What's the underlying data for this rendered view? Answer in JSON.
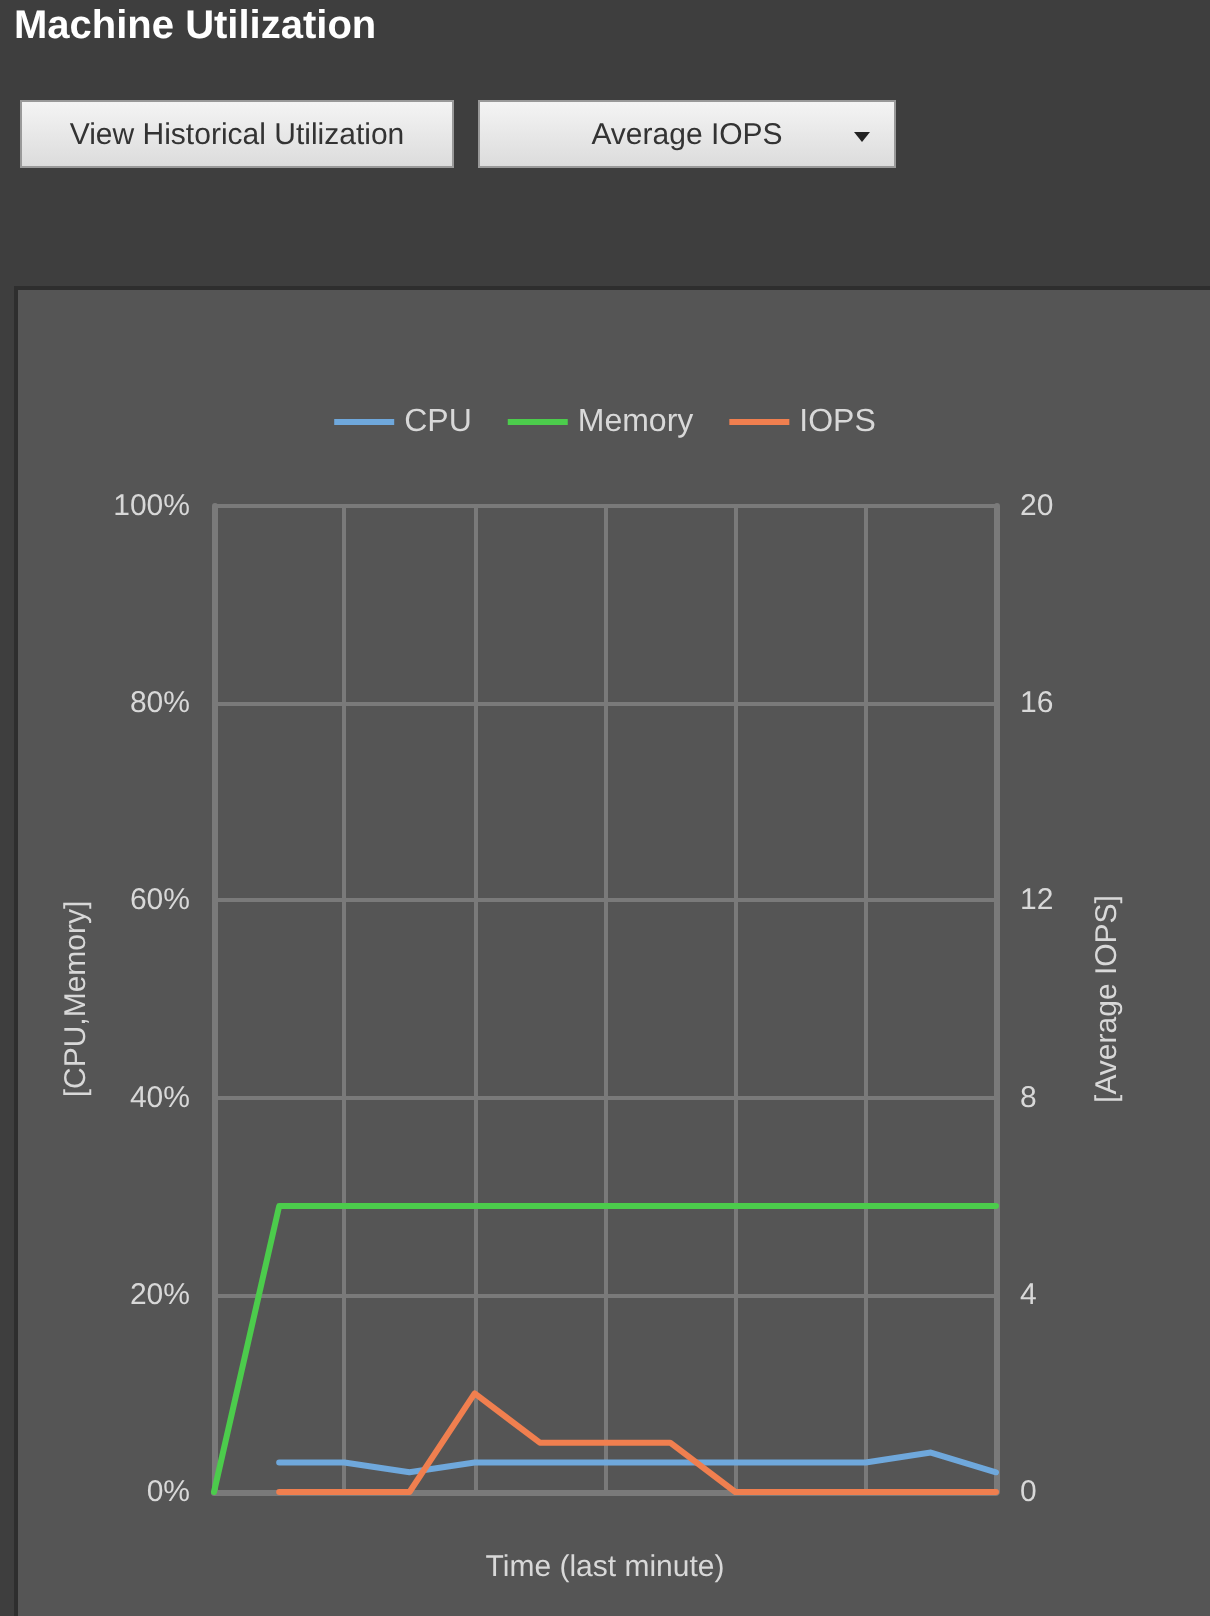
{
  "chart_data": {
    "type": "line",
    "title": "Machine Utilization",
    "annotations": [
      "View Historical Utilization",
      "Average IOPS"
    ],
    "xlabel": "Time (last minute)",
    "ylabel": "[CPU,Memory]",
    "y2label": "[Average IOPS]",
    "categories": [
      null,
      null,
      null,
      null,
      null,
      null,
      null,
      null,
      null,
      null,
      null,
      null,
      null
    ],
    "series": [
      {
        "name": "CPU",
        "color": "#6fa8dc",
        "values": [
          null,
          3,
          3,
          2,
          3,
          3,
          3,
          3,
          3,
          3,
          3,
          4,
          2
        ]
      },
      {
        "name": "Memory",
        "color": "#4ccc4c",
        "values": [
          0,
          29,
          29,
          29,
          29,
          29,
          29,
          29,
          29,
          29,
          29,
          29,
          29
        ]
      },
      {
        "name": "IOPS",
        "color": "#f07f4f",
        "axis": "y2",
        "values": [
          null,
          0,
          0,
          0,
          2,
          1,
          1,
          1,
          0,
          0,
          0,
          0,
          0
        ]
      }
    ],
    "ylim": [
      0,
      100
    ],
    "yticks": [
      {
        "value": 0,
        "label": "0%"
      },
      {
        "value": 20,
        "label": "20%"
      },
      {
        "value": 40,
        "label": "40%"
      },
      {
        "value": 60,
        "label": "60%"
      },
      {
        "value": 80,
        "label": "80%"
      },
      {
        "value": 100,
        "label": "100%"
      }
    ],
    "y2lim": [
      0,
      20
    ],
    "y2ticks": [
      0,
      4,
      8,
      12,
      16,
      20
    ],
    "grid": true,
    "legend": "top",
    "marker": "none",
    "line_style": "solid"
  }
}
